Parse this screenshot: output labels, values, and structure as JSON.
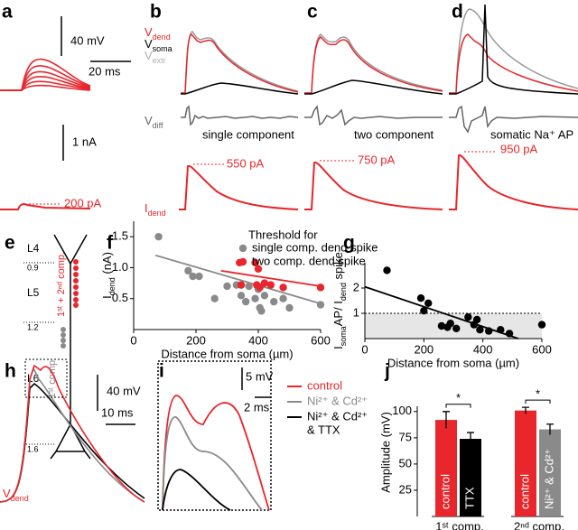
{
  "panel_labels": [
    "a",
    "b",
    "c",
    "d",
    "e",
    "f",
    "g",
    "h",
    "i",
    "j"
  ],
  "traces": {
    "scale_bars": [
      "40 mV",
      "20 ms",
      "1 nA"
    ],
    "signal_labels": [
      [
        {
          "text": "V"
        },
        {
          "text": "dend",
          "sub": true
        }
      ],
      [
        {
          "text": "V"
        },
        {
          "text": "soma",
          "sub": true
        }
      ],
      [
        {
          "text": "V"
        },
        {
          "text": "extr",
          "sub": true
        }
      ],
      [
        {
          "text": "V"
        },
        {
          "text": "diff",
          "sub": true
        }
      ],
      [
        {
          "text": "I"
        },
        {
          "text": "dend",
          "sub": true
        }
      ]
    ],
    "components": [
      "single component",
      "two component",
      "somatic Na⁺ AP"
    ],
    "currents": [
      "200 pA",
      "550 pA",
      "750 pA",
      "950 pA"
    ]
  },
  "layers": {
    "names": [
      "L4",
      "L5",
      "L6"
    ],
    "depths": [
      "0.9",
      "1.2",
      "1.6"
    ],
    "groups": [
      "1ˢᵗ + 2ⁿᵈ comp.",
      "1ˢᵗ comp"
    ]
  },
  "traces_h_i": {
    "scale_bars": [
      "40 mV",
      "10 ms",
      "5 mV",
      "2 ms"
    ],
    "signal_label": [
      {
        "text": "V"
      },
      {
        "text": "dend",
        "sub": true
      }
    ],
    "legend": [
      {
        "color": "#e8262b",
        "lines": [
          "control"
        ]
      },
      {
        "color": "#8a8a8a",
        "lines": [
          "Ni²⁺ & Cd²⁺"
        ]
      },
      {
        "color": "#000000",
        "lines": [
          "Ni²⁺ & Cd²⁺",
          "& TTX"
        ]
      }
    ]
  },
  "chart_data": [
    {
      "type": "scatter",
      "xlabel": "Distance from soma (µm)",
      "ylabel": [
        {
          "text": "I"
        },
        {
          "text": "dend",
          "sub": true
        },
        {
          "text": " (nA)"
        }
      ],
      "legend_title": "Threshold for",
      "xlim": [
        0,
        600
      ],
      "xticks": [
        0,
        200,
        400,
        600
      ],
      "ylim": [
        0,
        1.75
      ],
      "yticks": [
        0.5,
        {
          "value": 1,
          "label": "1.0"
        },
        1.5
      ],
      "series": [
        {
          "name": "single comp. dend spike",
          "color": "#8a8a8a",
          "x": [
            80,
            175,
            190,
            210,
            260,
            300,
            330,
            345,
            360,
            370,
            390,
            400,
            405,
            410,
            420,
            450,
            480,
            500,
            600
          ],
          "values": [
            1.5,
            0.95,
            0.86,
            0.86,
            0.5,
            0.7,
            0.72,
            0.55,
            0.45,
            0.7,
            0.5,
            0.65,
            0.35,
            0.3,
            0.55,
            0.45,
            0.5,
            0.35,
            0.4
          ],
          "fit": {
            "x": [
              70,
              600
            ],
            "values": [
              1.2,
              0.42
            ]
          }
        },
        {
          "name": "two comp. dend spike",
          "color": "#e8262b",
          "x": [
            340,
            345,
            390,
            395,
            400,
            405,
            420,
            440,
            480,
            600
          ],
          "values": [
            1.08,
            0.72,
            1.08,
            0.72,
            0.98,
            0.68,
            0.75,
            0.72,
            0.68,
            0.68
          ],
          "fit": {
            "x": [
              280,
              600
            ],
            "values": [
              0.95,
              0.7
            ]
          }
        }
      ]
    },
    {
      "type": "scatter",
      "xlabel": "Distance from soma (µm)",
      "ylabel": [
        {
          "text": "I"
        },
        {
          "text": "soma",
          "sub": true
        },
        {
          "text": "AP/ I"
        },
        {
          "text": "dend",
          "sub": true
        },
        {
          "text": " spike"
        }
      ],
      "xlim": [
        0,
        600
      ],
      "xticks": [
        0,
        200,
        400,
        600
      ],
      "ylim": [
        0,
        3
      ],
      "yticks": [
        1,
        2
      ],
      "reference_line": 1,
      "series": [
        {
          "color": "#000000",
          "x": [
            75,
            190,
            200,
            215,
            260,
            280,
            290,
            310,
            350,
            370,
            380,
            390,
            420,
            460,
            490,
            600
          ],
          "values": [
            2.7,
            1.6,
            1.1,
            1.4,
            0.5,
            0.45,
            0.6,
            0.4,
            0.85,
            0.55,
            0.75,
            0.35,
            0.3,
            0.35,
            0.2,
            0.55
          ],
          "fit": {
            "x": [
              0,
              520
            ],
            "values": [
              2.05,
              0
            ]
          }
        }
      ]
    },
    {
      "type": "bar",
      "ylabel": "Amplitude (mV)",
      "ylim": [
        0,
        105
      ],
      "yticks": [
        25,
        50,
        75,
        100
      ],
      "groups": [
        {
          "label": "1ˢᵗ comp.",
          "significance": "*",
          "categories": [
            "control",
            "TTX"
          ],
          "values": [
            92,
            74
          ],
          "errors": [
            8,
            6
          ],
          "colors": [
            "#e8262b",
            "#000000"
          ]
        },
        {
          "label": "2ⁿᵈ comp.",
          "significance": "*",
          "categories": [
            "control",
            "Ni²⁺ & Cd²⁺"
          ],
          "values": [
            101,
            83
          ],
          "errors": [
            3,
            5
          ],
          "colors": [
            "#e8262b",
            "#8a8a8a"
          ]
        }
      ]
    }
  ]
}
